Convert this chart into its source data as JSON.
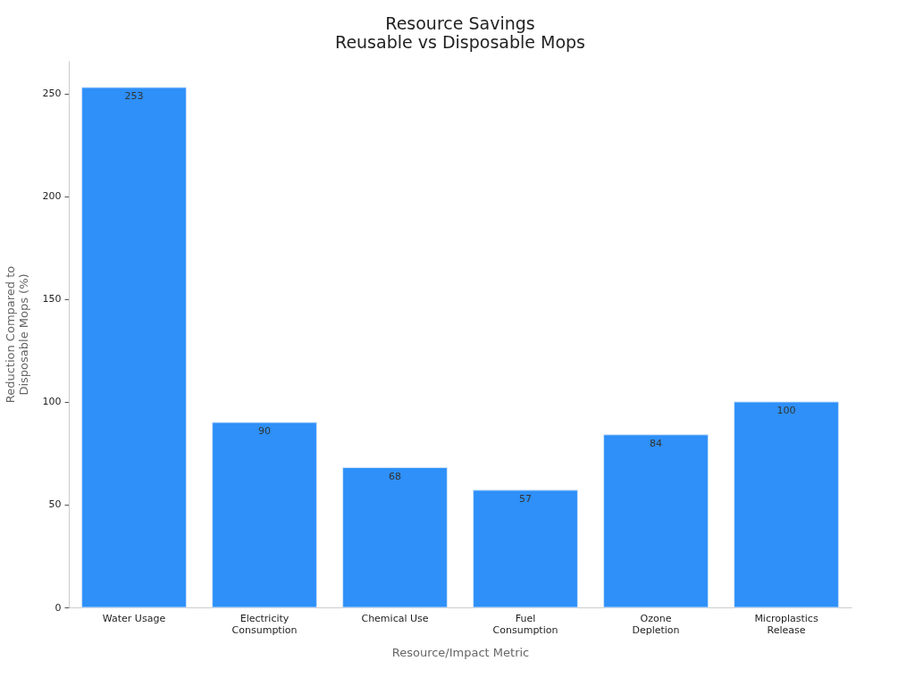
{
  "chart_data": {
    "type": "bar",
    "title": "Resource Savings\nReusable vs Disposable Mops",
    "xlabel": "Resource/Impact Metric",
    "ylabel": "Reduction Compared to Disposable Mops (%)",
    "categories": [
      "Water Usage",
      "Electricity Consumption",
      "Chemical Use",
      "Fuel Consumption",
      "Ozone Depletion",
      "Microplastics Release"
    ],
    "values": [
      253,
      90,
      68,
      57,
      84,
      100
    ],
    "color": "#2e90f8",
    "ylim": [
      0,
      266
    ],
    "yticks": [
      0,
      50,
      100,
      150,
      200,
      250
    ],
    "grid": false,
    "data_labels": true
  }
}
